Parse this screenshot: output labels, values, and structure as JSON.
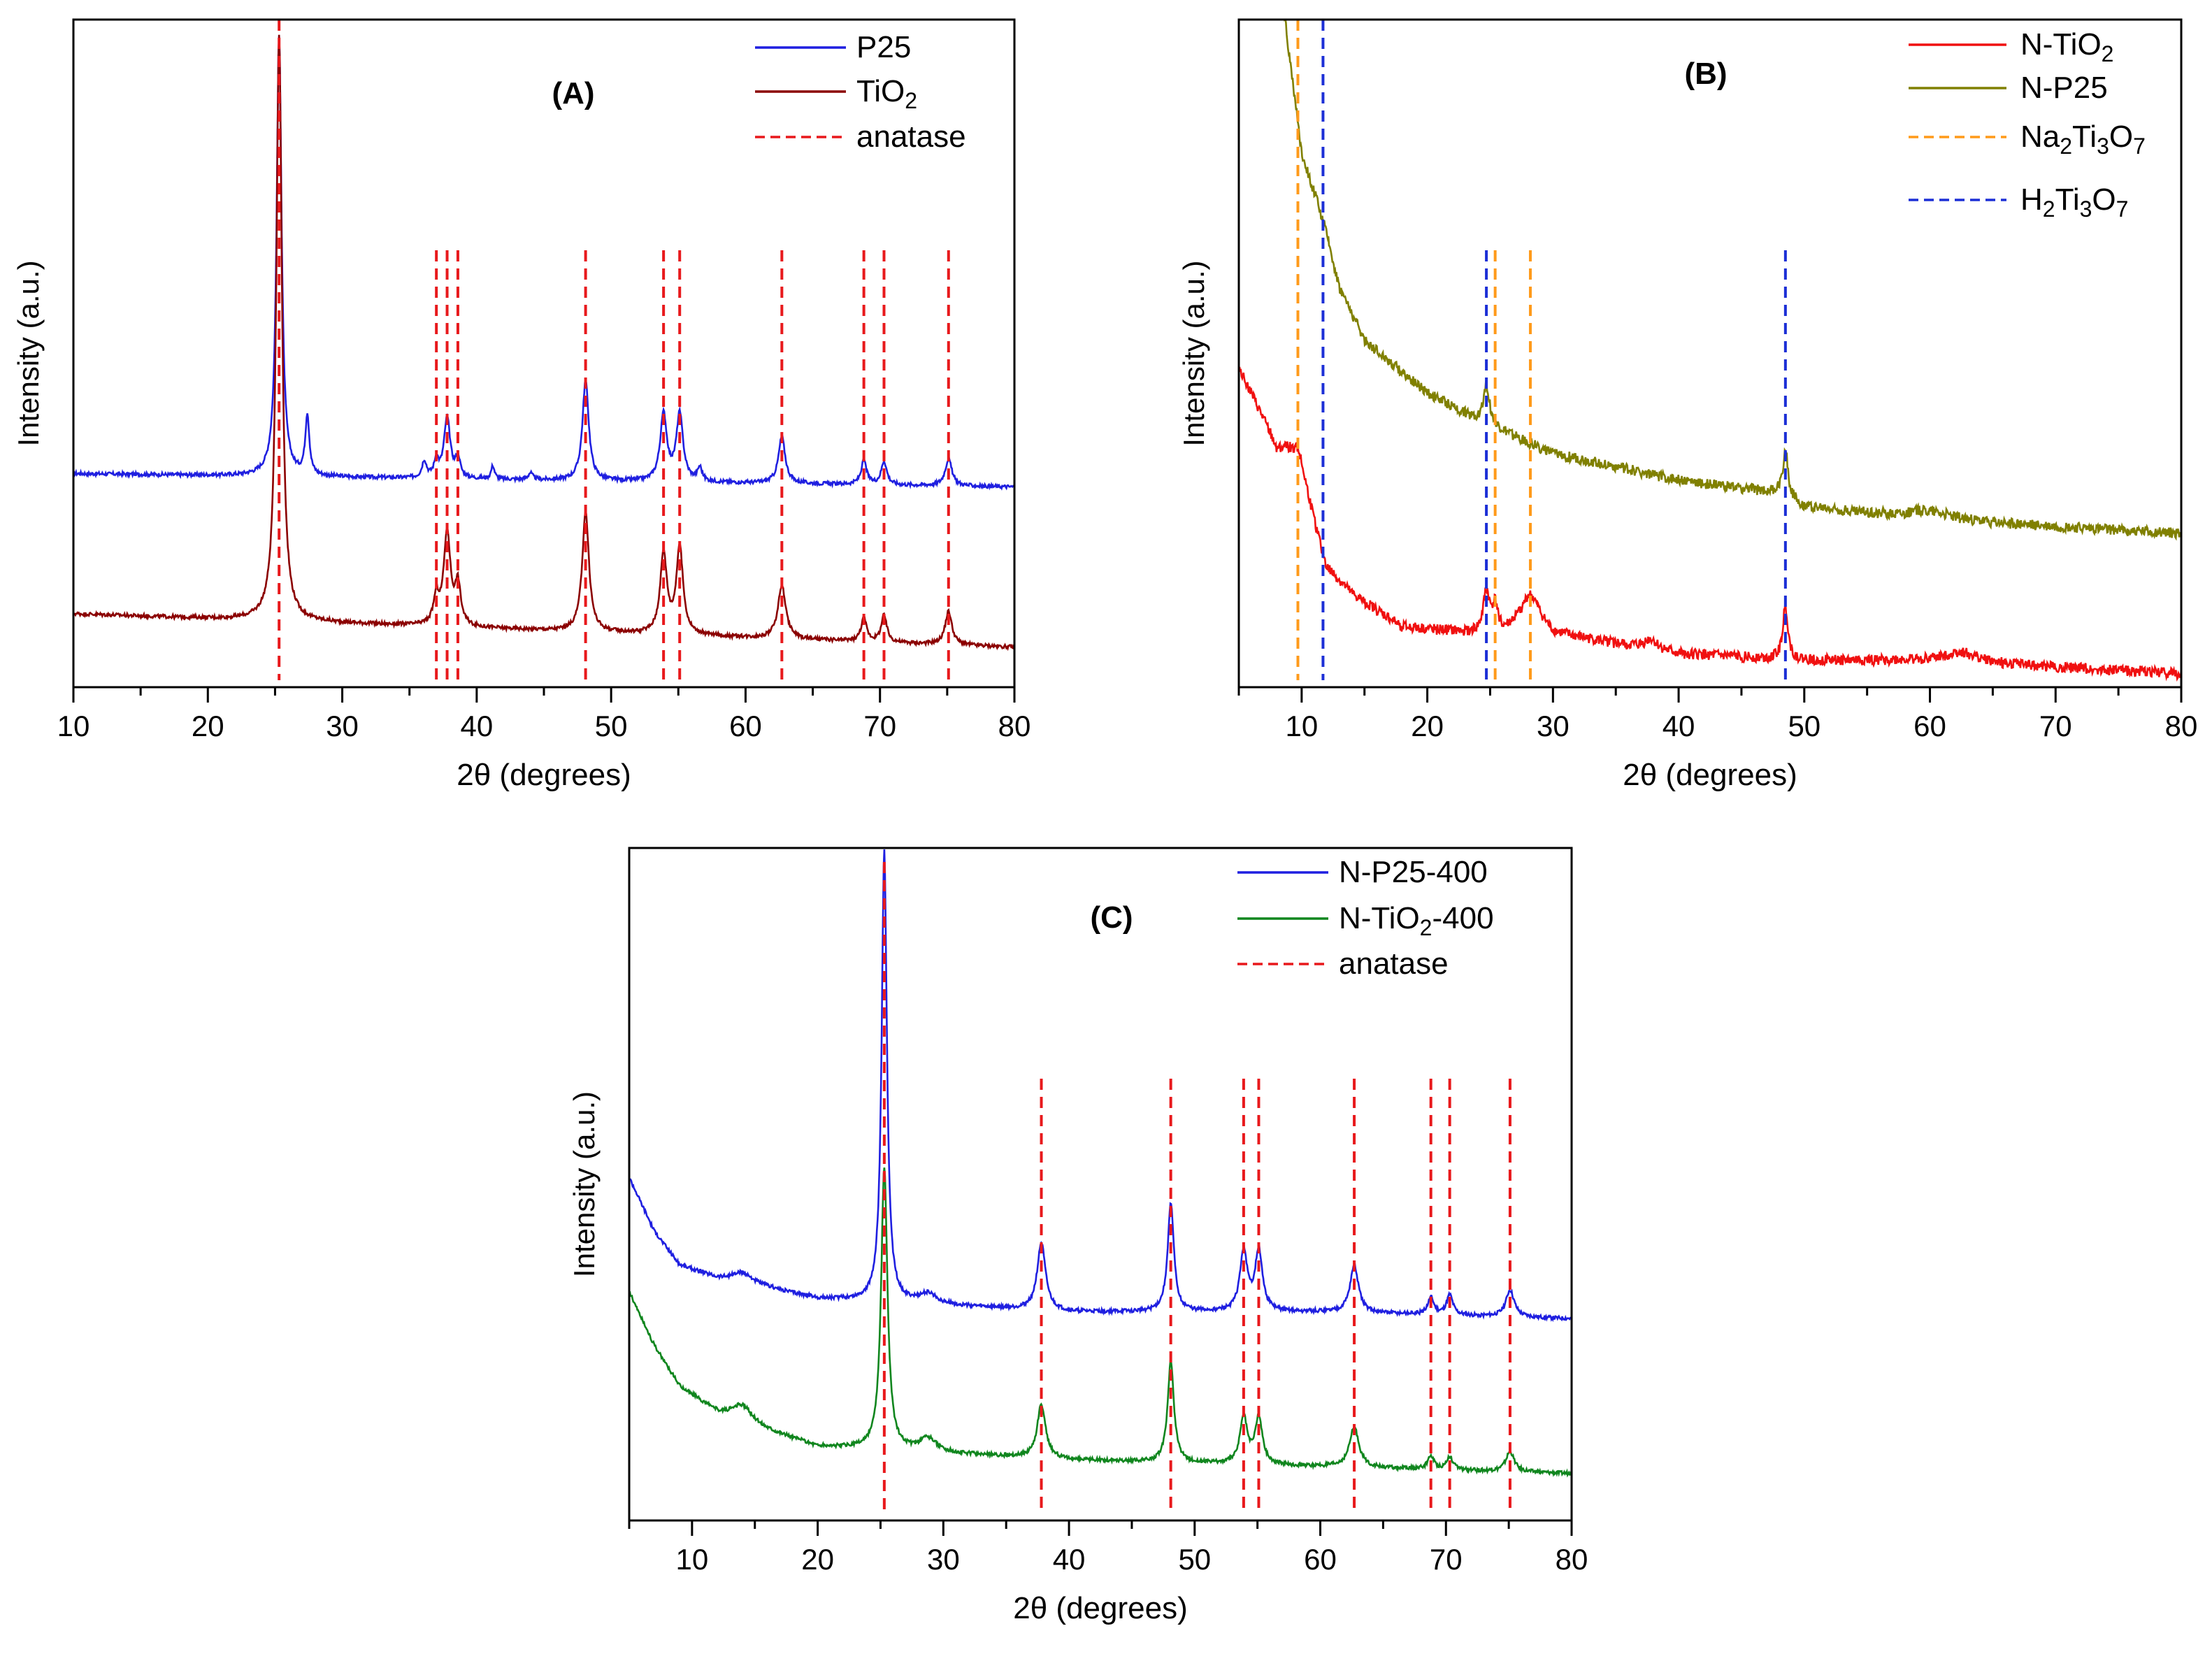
{
  "colors": {
    "p25": "#1f1fe0",
    "tio2": "#8b0000",
    "anatase": "#e8191c",
    "n_tio2": "#f01010",
    "n_p25": "#808000",
    "na2ti3o7": "#ff9a1a",
    "h2ti3o7": "#1c2fd6",
    "n_p25_400": "#1f1fe0",
    "n_tio2_400": "#10861e"
  },
  "chart_data": [
    {
      "id": "A",
      "type": "line",
      "title": "(A)",
      "xlabel": "2θ (degrees)",
      "ylabel": "Intensity (a.u.)",
      "xlim": [
        10,
        80
      ],
      "ylim": [
        0,
        100
      ],
      "xticks": [
        "10",
        "20",
        "30",
        "40",
        "50",
        "60",
        "70",
        "80"
      ],
      "legend": [
        {
          "label_main": "P25",
          "label_sub": "",
          "label_tail": "",
          "style": "solid",
          "color": "#1f1fe0"
        },
        {
          "label_main": "TiO",
          "label_sub": "2",
          "label_tail": "",
          "style": "solid",
          "color": "#8b0000"
        },
        {
          "label_main": "anatase",
          "label_sub": "",
          "label_tail": "",
          "style": "dashed",
          "color": "#e8191c"
        }
      ],
      "reference_lines": [
        {
          "name": "anatase",
          "color": "#e8191c",
          "x": [
            25.3,
            37.0,
            37.8,
            38.6,
            48.1,
            53.9,
            55.1,
            62.7,
            68.8,
            70.3,
            75.1
          ]
        }
      ],
      "series": [
        {
          "name": "P25",
          "color": "#1f1fe0",
          "baseline_start": 32,
          "baseline_end": 30,
          "peaks": [
            [
              25.3,
              66,
              0.22
            ],
            [
              27.4,
              9,
              0.18
            ],
            [
              36.1,
              2.5,
              0.2
            ],
            [
              37.0,
              2.5,
              0.2
            ],
            [
              37.8,
              9,
              0.28
            ],
            [
              38.6,
              3,
              0.2
            ],
            [
              41.2,
              2,
              0.15
            ],
            [
              44.0,
              1,
              0.2
            ],
            [
              48.1,
              15,
              0.28
            ],
            [
              53.9,
              10,
              0.3
            ],
            [
              55.1,
              10,
              0.3
            ],
            [
              56.6,
              2,
              0.2
            ],
            [
              62.7,
              7,
              0.3
            ],
            [
              68.8,
              3.5,
              0.25
            ],
            [
              70.3,
              3.5,
              0.25
            ],
            [
              75.1,
              4,
              0.3
            ]
          ]
        },
        {
          "name": "TiO2",
          "color": "#8b0000",
          "baseline_start": 11,
          "baseline_end": 6,
          "peaks": [
            [
              25.3,
              88,
              0.25
            ],
            [
              37.0,
              4,
              0.25
            ],
            [
              37.8,
              14,
              0.3
            ],
            [
              38.6,
              6,
              0.25
            ],
            [
              48.1,
              18,
              0.3
            ],
            [
              53.9,
              12,
              0.3
            ],
            [
              55.1,
              13,
              0.3
            ],
            [
              62.7,
              8,
              0.35
            ],
            [
              68.8,
              3.5,
              0.25
            ],
            [
              70.3,
              4,
              0.25
            ],
            [
              75.1,
              5,
              0.3
            ]
          ]
        }
      ]
    },
    {
      "id": "B",
      "type": "line",
      "title": "(B)",
      "xlabel": "2θ (degrees)",
      "ylabel": "Intensity (a.u.)",
      "xlim": [
        5,
        80
      ],
      "ylim": [
        0,
        100
      ],
      "xticks": [
        "10",
        "20",
        "30",
        "40",
        "50",
        "60",
        "70",
        "80"
      ],
      "legend": [
        {
          "label_main": "N-TiO",
          "label_sub": "2",
          "label_tail": "",
          "style": "solid",
          "color": "#f01010"
        },
        {
          "label_main": "N-P25",
          "label_sub": "",
          "label_tail": "",
          "style": "solid",
          "color": "#808000"
        },
        {
          "label_main": "Na",
          "label_sub": "2",
          "label_tail": "Ti3O7",
          "style": "dashed",
          "color": "#ff9a1a"
        },
        {
          "label_main": "H",
          "label_sub": "2",
          "label_tail": "Ti3O7",
          "style": "dashed",
          "color": "#1c2fd6"
        }
      ],
      "reference_lines": [
        {
          "name": "Na2Ti3O7",
          "color": "#ff9a1a",
          "x": [
            9.7,
            25.4,
            28.2
          ]
        },
        {
          "name": "H2Ti3O7",
          "color": "#1c2fd6",
          "x": [
            11.7,
            24.7,
            48.5
          ]
        }
      ],
      "series": [
        {
          "name": "N-TiO2",
          "color": "#f01010",
          "curve": [
            [
              5,
              48
            ],
            [
              8,
              36
            ],
            [
              9.7,
              36
            ],
            [
              11,
              25
            ],
            [
              12,
              18
            ],
            [
              14,
              14
            ],
            [
              18,
              9
            ],
            [
              24,
              8
            ],
            [
              26,
              8
            ],
            [
              28,
              11
            ],
            [
              30,
              8
            ],
            [
              40,
              5
            ],
            [
              50,
              4
            ],
            [
              60,
              4
            ],
            [
              70,
              3
            ],
            [
              80,
              2
            ]
          ],
          "peaks": [
            [
              24.7,
              6,
              0.3
            ],
            [
              25.4,
              4,
              0.3
            ],
            [
              28.3,
              3,
              0.8
            ],
            [
              37.8,
              1.5,
              0.6
            ],
            [
              48.5,
              8,
              0.25
            ],
            [
              62.5,
              1.5,
              1.5
            ]
          ]
        },
        {
          "name": "N-P25",
          "color": "#808000",
          "curve": [
            [
              8,
              110
            ],
            [
              10,
              80
            ],
            [
              11.7,
              70
            ],
            [
              13,
              60
            ],
            [
              15,
              52
            ],
            [
              20,
              44
            ],
            [
              24,
              40
            ],
            [
              30,
              35
            ],
            [
              40,
              31
            ],
            [
              48,
              29
            ],
            [
              50,
              27
            ],
            [
              60,
              25
            ],
            [
              70,
              24
            ],
            [
              80,
              23
            ]
          ],
          "peaks": [
            [
              24.7,
              6,
              0.3
            ],
            [
              48.5,
              7,
              0.25
            ],
            [
              60,
              1.5,
              2
            ]
          ]
        }
      ]
    },
    {
      "id": "C",
      "type": "line",
      "title": "(C)",
      "xlabel": "2θ (degrees)",
      "ylabel": "Intensity (a.u.)",
      "xlim": [
        5,
        80
      ],
      "ylim": [
        0,
        100
      ],
      "xticks": [
        "10",
        "20",
        "30",
        "40",
        "50",
        "60",
        "70",
        "80"
      ],
      "legend": [
        {
          "label_main": "N-P25-400",
          "label_sub": "",
          "label_tail": "",
          "style": "solid",
          "color": "#1f1fe0"
        },
        {
          "label_main": "N-TiO",
          "label_sub": "2",
          "label_tail": "-400",
          "style": "solid",
          "color": "#10861e"
        },
        {
          "label_main": "anatase",
          "label_sub": "",
          "label_tail": "",
          "style": "dashed",
          "color": "#e8191c"
        }
      ],
      "reference_lines": [
        {
          "name": "anatase",
          "color": "#e8191c",
          "x": [
            25.3,
            37.8,
            48.1,
            53.9,
            55.1,
            62.7,
            68.8,
            70.3,
            75.1
          ]
        }
      ],
      "series": [
        {
          "name": "N-P25-400",
          "color": "#1f1fe0",
          "curve": [
            [
              5,
              51
            ],
            [
              7,
              43
            ],
            [
              9,
              38
            ],
            [
              12,
              36
            ],
            [
              15,
              35
            ],
            [
              20,
              33
            ],
            [
              30,
              32
            ],
            [
              40,
              31
            ],
            [
              60,
              31
            ],
            [
              80,
              30
            ]
          ],
          "peaks": [
            [
              14,
              1.5,
              1
            ],
            [
              25.3,
              67,
              0.25
            ],
            [
              28.8,
              1.5,
              0.8
            ],
            [
              37.8,
              10,
              0.4
            ],
            [
              48.1,
              16,
              0.3
            ],
            [
              53.9,
              9,
              0.35
            ],
            [
              55.1,
              9,
              0.35
            ],
            [
              62.7,
              7,
              0.4
            ],
            [
              68.8,
              2.5,
              0.3
            ],
            [
              70.3,
              3,
              0.3
            ],
            [
              75.1,
              4,
              0.4
            ]
          ]
        },
        {
          "name": "N-TiO2-400",
          "color": "#10861e",
          "curve": [
            [
              5,
              34
            ],
            [
              7,
              26
            ],
            [
              9,
              20
            ],
            [
              12,
              16
            ],
            [
              15,
              14
            ],
            [
              20,
              11
            ],
            [
              30,
              10
            ],
            [
              40,
              9
            ],
            [
              60,
              8
            ],
            [
              80,
              7
            ]
          ],
          "peaks": [
            [
              14,
              2.5,
              1
            ],
            [
              25.3,
              42,
              0.3
            ],
            [
              28.8,
              2,
              0.8
            ],
            [
              37.8,
              8,
              0.4
            ],
            [
              48.1,
              15,
              0.3
            ],
            [
              53.9,
              7,
              0.35
            ],
            [
              55.1,
              7,
              0.35
            ],
            [
              62.7,
              6,
              0.45
            ],
            [
              68.8,
              2,
              0.3
            ],
            [
              70.3,
              2,
              0.3
            ],
            [
              75.1,
              3,
              0.4
            ]
          ]
        }
      ]
    }
  ]
}
